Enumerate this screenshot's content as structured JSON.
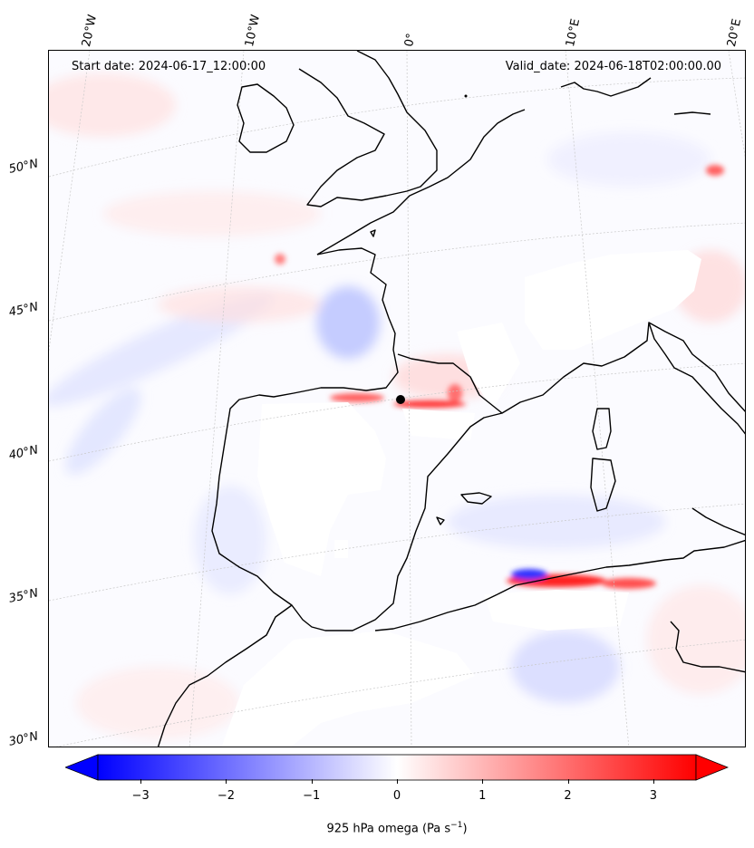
{
  "header": {
    "start_date": "Start date: 2024-06-17_12:00:00",
    "valid_date": "Valid_date: 2024-06-18T02:00:00.00"
  },
  "map": {
    "projection": "lambert-conformal",
    "grid": true,
    "lon_labels": [
      "20°W",
      "10°W",
      "0°",
      "10°E",
      "20°E"
    ],
    "lat_labels": [
      "50°N",
      "45°N",
      "40°N",
      "35°N",
      "30°N"
    ],
    "field": "925 hPa omega",
    "colormap": "bwr",
    "coastline_color": "#000000"
  },
  "colorbar": {
    "vmin": -3.5,
    "vmax": 3.5,
    "extend": "both",
    "ticks": [
      "−3",
      "−2",
      "−1",
      "0",
      "1",
      "2",
      "3"
    ],
    "tick_values": [
      -3,
      -2,
      -1,
      0,
      1,
      2,
      3
    ],
    "label": "925 hPa omega (Pa s",
    "label_exp": "−1",
    "label_end": ")",
    "low_color": "#0000ff",
    "mid_color": "#ffffff",
    "high_color": "#ff0000"
  }
}
